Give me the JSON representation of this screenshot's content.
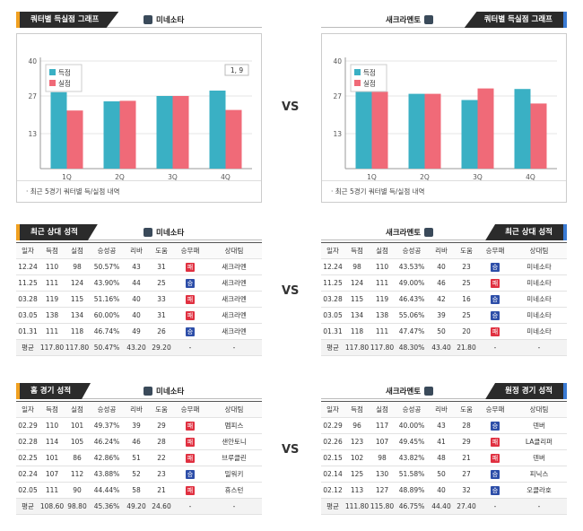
{
  "vs_label": "VS",
  "charts": {
    "left": {
      "tag": "쿼터별 득실점 그래프",
      "team": "미네소타",
      "note": "· 최근 5경기 쿼터별 득/실점 내역",
      "badge": "1, 9"
    },
    "right": {
      "tag": "쿼터별 득실점 그래프",
      "team": "새크라멘토",
      "note": "· 최근 5경기 쿼터별 득/실점 내역"
    }
  },
  "chart_data": [
    {
      "type": "bar",
      "categories": [
        "1Q",
        "2Q",
        "3Q",
        "4Q"
      ],
      "series": [
        {
          "name": "득점",
          "color": "#3ab0c4",
          "values": [
            28.4,
            25.0,
            27.0,
            29.0
          ]
        },
        {
          "name": "실점",
          "color": "#f06a78",
          "values": [
            21.6,
            25.2,
            27.0,
            21.8
          ]
        }
      ],
      "yticks": [
        13,
        27,
        40
      ],
      "ylim": [
        0,
        40
      ],
      "legend": "top-left"
    },
    {
      "type": "bar",
      "categories": [
        "1Q",
        "2Q",
        "3Q",
        "4Q"
      ],
      "series": [
        {
          "name": "득점",
          "color": "#3ab0c4",
          "values": [
            29.0,
            27.8,
            25.5,
            29.6
          ]
        },
        {
          "name": "실점",
          "color": "#f06a78",
          "values": [
            28.6,
            27.8,
            29.8,
            24.2
          ]
        }
      ],
      "yticks": [
        13,
        27,
        40
      ],
      "ylim": [
        0,
        40
      ],
      "legend": "top-left"
    }
  ],
  "columns": [
    "일자",
    "득점",
    "실점",
    "승성공",
    "리바",
    "도움",
    "승무패",
    "상대팀"
  ],
  "win_label": "승",
  "loss_label": "패",
  "tables": {
    "recent_left": {
      "tag": "최근 상대 성적",
      "team": "미네소타",
      "rows": [
        [
          "12.24",
          "110",
          "98",
          "50.57%",
          "43",
          "31",
          "L",
          "새크라멘"
        ],
        [
          "11.25",
          "111",
          "124",
          "43.90%",
          "44",
          "25",
          "W",
          "새크라멘"
        ],
        [
          "03.28",
          "119",
          "115",
          "51.16%",
          "40",
          "33",
          "L",
          "새크라멘"
        ],
        [
          "03.05",
          "138",
          "134",
          "60.00%",
          "40",
          "31",
          "L",
          "새크라멘"
        ],
        [
          "01.31",
          "111",
          "118",
          "46.74%",
          "49",
          "26",
          "W",
          "새크라멘"
        ]
      ],
      "avg": [
        "평균",
        "117.80",
        "117.80",
        "50.47%",
        "43.20",
        "29.20",
        "-",
        "-"
      ]
    },
    "recent_right": {
      "tag": "최근 상대 성적",
      "team": "새크라멘토",
      "rows": [
        [
          "12.24",
          "98",
          "110",
          "43.53%",
          "40",
          "23",
          "W",
          "미네소타"
        ],
        [
          "11.25",
          "124",
          "111",
          "49.00%",
          "46",
          "25",
          "L",
          "미네소타"
        ],
        [
          "03.28",
          "115",
          "119",
          "46.43%",
          "42",
          "16",
          "W",
          "미네소타"
        ],
        [
          "03.05",
          "134",
          "138",
          "55.06%",
          "39",
          "25",
          "W",
          "미네소타"
        ],
        [
          "01.31",
          "118",
          "111",
          "47.47%",
          "50",
          "20",
          "L",
          "미네소타"
        ]
      ],
      "avg": [
        "평균",
        "117.80",
        "117.80",
        "48.30%",
        "43.40",
        "21.80",
        "-",
        "-"
      ]
    },
    "home_left": {
      "tag": "홈 경기 성적",
      "team": "미네소타",
      "rows": [
        [
          "02.29",
          "110",
          "101",
          "49.37%",
          "39",
          "29",
          "L",
          "멤피스"
        ],
        [
          "02.28",
          "114",
          "105",
          "46.24%",
          "46",
          "28",
          "L",
          "샌안토니"
        ],
        [
          "02.25",
          "101",
          "86",
          "42.86%",
          "51",
          "22",
          "L",
          "브루클린"
        ],
        [
          "02.24",
          "107",
          "112",
          "43.88%",
          "52",
          "23",
          "W",
          "밀워키"
        ],
        [
          "02.05",
          "111",
          "90",
          "44.44%",
          "58",
          "21",
          "L",
          "휴스턴"
        ]
      ],
      "avg": [
        "평균",
        "108.60",
        "98.80",
        "45.36%",
        "49.20",
        "24.60",
        "-",
        "-"
      ]
    },
    "away_right": {
      "tag": "원정 경기 성적",
      "team": "새크라멘토",
      "rows": [
        [
          "02.29",
          "96",
          "117",
          "40.00%",
          "43",
          "28",
          "W",
          "덴버"
        ],
        [
          "02.26",
          "123",
          "107",
          "49.45%",
          "41",
          "29",
          "L",
          "LA클리퍼"
        ],
        [
          "02.15",
          "102",
          "98",
          "43.82%",
          "48",
          "21",
          "L",
          "덴버"
        ],
        [
          "02.14",
          "125",
          "130",
          "51.58%",
          "50",
          "27",
          "W",
          "피닉스"
        ],
        [
          "02.12",
          "113",
          "127",
          "48.89%",
          "40",
          "32",
          "W",
          "오클라호"
        ]
      ],
      "avg": [
        "평균",
        "111.80",
        "115.80",
        "46.75%",
        "44.40",
        "27.40",
        "-",
        "-"
      ]
    }
  }
}
